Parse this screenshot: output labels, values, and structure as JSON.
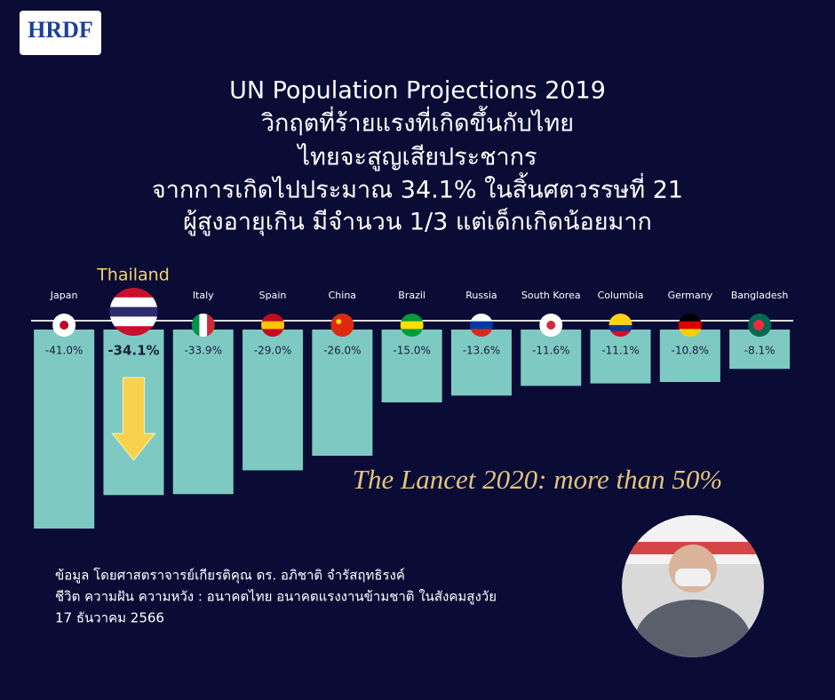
{
  "logo": {
    "text": "HRDF"
  },
  "header": {
    "lines": [
      "UN Population Projections 2019",
      "วิกฤตที่ร้ายแรงที่เกิดขึ้นกับไทย",
      "ไทยจะสูญเสียประชากร",
      "จากการเกิดไปประมาณ 34.1% ในสิ้นศตวรรษที่ 21",
      "ผู้สูงอายุเกิน มีจำนวน 1/3 แต่เด็กเกิดน้อยมาก"
    ]
  },
  "chart_data": {
    "type": "bar",
    "highlight_label": "Thailand",
    "categories": [
      "Japan",
      null,
      "Italy",
      "Spain",
      "China",
      "Brazil",
      "Russia",
      "South Korea",
      "Columbia",
      "Germany",
      "Bangladesh"
    ],
    "values": [
      -41.0,
      -34.1,
      -33.9,
      -29.0,
      -26.0,
      -15.0,
      -13.6,
      -11.6,
      -11.1,
      -10.8,
      -8.1
    ],
    "value_labels": [
      "-41.0%",
      "-34.1%",
      "-33.9%",
      "-29.0%",
      "-26.0%",
      "-15.0%",
      "-13.6%",
      "-11.6%",
      "-11.1%",
      "-10.8%",
      "-8.1%"
    ],
    "color": "#7ecac3",
    "ylim": [
      -41,
      0
    ],
    "annotation": "The Lancet 2020: more than 50%"
  },
  "footer": {
    "lines": [
      "ข้อมูล โดยศาสตราจารย์เกียรติคุณ ดร. อภิชาติ จำรัสฤทธิรงค์",
      "ชีวิต ความฝัน ความหวัง : อนาคตไทย อนาคตแรงงานข้ามชาติ ในสังคมสูงวัย",
      "17 ธันวาคม 2566"
    ]
  }
}
